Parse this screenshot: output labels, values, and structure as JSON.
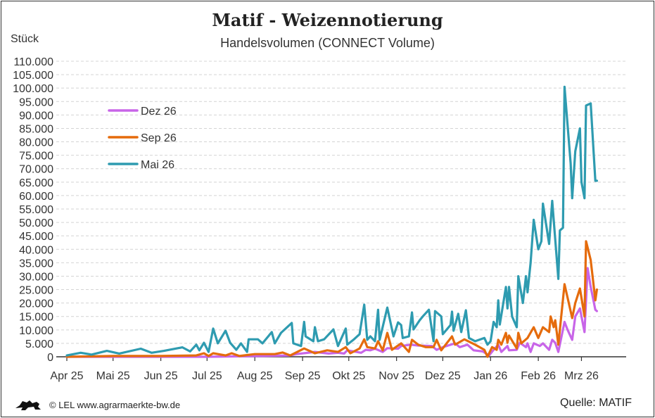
{
  "title": "Matif - Weizennotierung",
  "subtitle": "Handelsvolumen (CONNECT Volume)",
  "footer": {
    "copyright": "© LEL www.agrarmaerkte-bw.de",
    "source": "Quelle: MATIF",
    "logo_icon": "lion-icon"
  },
  "chart_data": {
    "type": "line",
    "title": "Matif - Weizennotierung",
    "subtitle": "Handelsvolumen (CONNECT Volume)",
    "ylabel": "Stück",
    "ylim": [
      0,
      110000
    ],
    "yticks": [
      "0",
      "5.000",
      "10.000",
      "15.000",
      "20.000",
      "25.000",
      "30.000",
      "35.000",
      "40.000",
      "45.000",
      "50.000",
      "55.000",
      "60.000",
      "65.000",
      "70.000",
      "75.000",
      "80.000",
      "85.000",
      "90.000",
      "95.000",
      "100.000",
      "105.000",
      "110.000"
    ],
    "xlim": [
      "2025-04-01",
      "2026-04-01"
    ],
    "xticks": [
      {
        "date": "2025-04-01",
        "label": "Apr 25"
      },
      {
        "date": "2025-05-01",
        "label": "Mai 25"
      },
      {
        "date": "2025-06-01",
        "label": "Jun 25"
      },
      {
        "date": "2025-07-01",
        "label": "Jul 25"
      },
      {
        "date": "2025-08-01",
        "label": "Aug 25"
      },
      {
        "date": "2025-09-01",
        "label": "Sep 25"
      },
      {
        "date": "2025-10-01",
        "label": "Okt 25"
      },
      {
        "date": "2025-11-01",
        "label": "Nov 25"
      },
      {
        "date": "2025-12-01",
        "label": "Dez 25"
      },
      {
        "date": "2026-01-01",
        "label": "Jan 26"
      },
      {
        "date": "2026-02-01",
        "label": "Feb 26"
      },
      {
        "date": "2026-03-01",
        "label": "Mrz 26"
      }
    ],
    "grid": true,
    "legend_position": "top-left",
    "series": [
      {
        "name": "Dez 26",
        "color": "#c865e8",
        "points": [
          [
            "2025-04-01",
            0
          ],
          [
            "2025-07-01",
            0
          ],
          [
            "2025-08-06",
            300
          ],
          [
            "2025-08-24",
            500
          ],
          [
            "2025-08-28",
            1000
          ],
          [
            "2025-09-09",
            1800
          ],
          [
            "2025-09-18",
            1200
          ],
          [
            "2025-09-24",
            1500
          ],
          [
            "2025-09-28",
            1200
          ],
          [
            "2025-09-30",
            2400
          ],
          [
            "2025-10-09",
            1500
          ],
          [
            "2025-10-12",
            2600
          ],
          [
            "2025-10-15",
            2400
          ],
          [
            "2025-10-18",
            3000
          ],
          [
            "2025-10-23",
            1800
          ],
          [
            "2025-10-26",
            3200
          ],
          [
            "2025-11-02",
            3000
          ],
          [
            "2025-11-04",
            4000
          ],
          [
            "2025-11-10",
            4500
          ],
          [
            "2025-11-15",
            4200
          ],
          [
            "2025-11-24",
            4000
          ],
          [
            "2025-11-27",
            2600
          ],
          [
            "2025-12-01",
            3600
          ],
          [
            "2025-12-09",
            5000
          ],
          [
            "2025-12-12",
            3600
          ],
          [
            "2025-12-17",
            4500
          ],
          [
            "2025-12-21",
            2400
          ],
          [
            "2025-12-27",
            2000
          ],
          [
            "2025-12-31",
            500
          ],
          [
            "2026-01-03",
            2600
          ],
          [
            "2026-01-06",
            4500
          ],
          [
            "2026-01-08",
            1800
          ],
          [
            "2026-01-12",
            4000
          ],
          [
            "2026-01-13",
            2400
          ],
          [
            "2026-01-18",
            2600
          ],
          [
            "2026-01-20",
            5200
          ],
          [
            "2026-01-24",
            3600
          ],
          [
            "2026-01-25",
            5000
          ],
          [
            "2026-01-27",
            1800
          ],
          [
            "2026-01-29",
            5000
          ],
          [
            "2026-02-02",
            4000
          ],
          [
            "2026-02-04",
            5000
          ],
          [
            "2026-02-08",
            2600
          ],
          [
            "2026-02-10",
            6300
          ],
          [
            "2026-02-12",
            5200
          ],
          [
            "2026-02-14",
            1800
          ],
          [
            "2026-02-18",
            13000
          ],
          [
            "2026-02-20",
            10000
          ],
          [
            "2026-02-23",
            6300
          ],
          [
            "2026-02-25",
            15000
          ],
          [
            "2026-02-28",
            18000
          ],
          [
            "2026-03-03",
            9200
          ],
          [
            "2026-03-05",
            33000
          ],
          [
            "2026-03-07",
            26000
          ],
          [
            "2026-03-10",
            17500
          ],
          [
            "2026-03-11",
            17000
          ]
        ]
      },
      {
        "name": "Sep 26",
        "color": "#e56b0c",
        "points": [
          [
            "2025-04-01",
            0
          ],
          [
            "2025-05-01",
            300
          ],
          [
            "2025-06-01",
            300
          ],
          [
            "2025-06-24",
            500
          ],
          [
            "2025-06-29",
            1300
          ],
          [
            "2025-07-02",
            300
          ],
          [
            "2025-07-05",
            1300
          ],
          [
            "2025-07-13",
            500
          ],
          [
            "2025-07-17",
            1300
          ],
          [
            "2025-07-22",
            300
          ],
          [
            "2025-08-01",
            1000
          ],
          [
            "2025-08-14",
            1000
          ],
          [
            "2025-08-19",
            1600
          ],
          [
            "2025-08-24",
            500
          ],
          [
            "2025-09-02",
            3100
          ],
          [
            "2025-09-09",
            1300
          ],
          [
            "2025-09-17",
            2400
          ],
          [
            "2025-09-24",
            1800
          ],
          [
            "2025-09-29",
            3600
          ],
          [
            "2025-10-02",
            1300
          ],
          [
            "2025-10-08",
            3100
          ],
          [
            "2025-10-11",
            6500
          ],
          [
            "2025-10-13",
            3600
          ],
          [
            "2025-10-18",
            3100
          ],
          [
            "2025-10-20",
            5800
          ],
          [
            "2025-10-23",
            2400
          ],
          [
            "2025-10-26",
            8900
          ],
          [
            "2025-10-29",
            2600
          ],
          [
            "2025-11-04",
            5000
          ],
          [
            "2025-11-09",
            1800
          ],
          [
            "2025-11-11",
            6300
          ],
          [
            "2025-11-15",
            4500
          ],
          [
            "2025-11-20",
            3600
          ],
          [
            "2025-11-25",
            3600
          ],
          [
            "2025-11-27",
            6300
          ],
          [
            "2025-11-30",
            2400
          ],
          [
            "2025-12-07",
            7600
          ],
          [
            "2025-12-09",
            4500
          ],
          [
            "2025-12-15",
            6500
          ],
          [
            "2025-12-22",
            4500
          ],
          [
            "2025-12-28",
            2600
          ],
          [
            "2025-12-30",
            0
          ],
          [
            "2026-01-02",
            3600
          ],
          [
            "2026-01-05",
            2600
          ],
          [
            "2026-01-06",
            6300
          ],
          [
            "2026-01-08",
            4500
          ],
          [
            "2026-01-11",
            8900
          ],
          [
            "2026-01-12",
            5200
          ],
          [
            "2026-01-13",
            7900
          ],
          [
            "2026-01-18",
            3100
          ],
          [
            "2026-01-19",
            8900
          ],
          [
            "2026-01-21",
            5000
          ],
          [
            "2026-01-25",
            7000
          ],
          [
            "2026-01-29",
            11000
          ],
          [
            "2026-02-01",
            7000
          ],
          [
            "2026-02-04",
            11000
          ],
          [
            "2026-02-08",
            9200
          ],
          [
            "2026-02-09",
            15000
          ],
          [
            "2026-02-11",
            11000
          ],
          [
            "2026-02-12",
            13600
          ],
          [
            "2026-02-14",
            4500
          ],
          [
            "2026-02-18",
            27000
          ],
          [
            "2026-02-23",
            14400
          ],
          [
            "2026-02-25",
            20000
          ],
          [
            "2026-02-28",
            25400
          ],
          [
            "2026-03-03",
            15000
          ],
          [
            "2026-03-04",
            43000
          ],
          [
            "2026-03-07",
            36000
          ],
          [
            "2026-03-10",
            21000
          ],
          [
            "2026-03-11",
            25000
          ]
        ]
      },
      {
        "name": "Mai 26",
        "color": "#2e9bb0",
        "points": [
          [
            "2025-04-01",
            500
          ],
          [
            "2025-04-10",
            1500
          ],
          [
            "2025-04-17",
            800
          ],
          [
            "2025-04-27",
            2200
          ],
          [
            "2025-05-05",
            1200
          ],
          [
            "2025-05-19",
            3000
          ],
          [
            "2025-05-26",
            1500
          ],
          [
            "2025-06-03",
            2200
          ],
          [
            "2025-06-15",
            3500
          ],
          [
            "2025-06-20",
            2000
          ],
          [
            "2025-06-24",
            4500
          ],
          [
            "2025-06-26",
            2400
          ],
          [
            "2025-06-29",
            5200
          ],
          [
            "2025-07-02",
            1800
          ],
          [
            "2025-07-05",
            10500
          ],
          [
            "2025-07-08",
            5000
          ],
          [
            "2025-07-13",
            9700
          ],
          [
            "2025-07-16",
            5200
          ],
          [
            "2025-07-20",
            2600
          ],
          [
            "2025-07-23",
            5000
          ],
          [
            "2025-07-27",
            1800
          ],
          [
            "2025-07-28",
            6500
          ],
          [
            "2025-08-03",
            6500
          ],
          [
            "2025-08-06",
            5000
          ],
          [
            "2025-08-12",
            9200
          ],
          [
            "2025-08-14",
            5000
          ],
          [
            "2025-08-18",
            8900
          ],
          [
            "2025-08-25",
            12600
          ],
          [
            "2025-08-26",
            5000
          ],
          [
            "2025-08-31",
            4000
          ],
          [
            "2025-09-02",
            13000
          ],
          [
            "2025-09-03",
            7600
          ],
          [
            "2025-09-08",
            5800
          ],
          [
            "2025-09-09",
            11000
          ],
          [
            "2025-09-11",
            5800
          ],
          [
            "2025-09-15",
            6500
          ],
          [
            "2025-09-21",
            10200
          ],
          [
            "2025-09-24",
            4000
          ],
          [
            "2025-09-29",
            10500
          ],
          [
            "2025-09-30",
            4500
          ],
          [
            "2025-10-04",
            6300
          ],
          [
            "2025-10-08",
            8400
          ],
          [
            "2025-10-11",
            19400
          ],
          [
            "2025-10-13",
            6300
          ],
          [
            "2025-10-15",
            7600
          ],
          [
            "2025-10-18",
            5800
          ],
          [
            "2025-10-20",
            17500
          ],
          [
            "2025-10-21",
            6300
          ],
          [
            "2025-10-26",
            18300
          ],
          [
            "2025-10-30",
            7600
          ],
          [
            "2025-11-02",
            12800
          ],
          [
            "2025-11-04",
            11800
          ],
          [
            "2025-11-05",
            7000
          ],
          [
            "2025-11-09",
            7600
          ],
          [
            "2025-11-11",
            16500
          ],
          [
            "2025-11-12",
            10200
          ],
          [
            "2025-11-16",
            13600
          ],
          [
            "2025-11-18",
            15000
          ],
          [
            "2025-11-22",
            17500
          ],
          [
            "2025-11-25",
            5800
          ],
          [
            "2025-11-26",
            17000
          ],
          [
            "2025-11-30",
            15000
          ],
          [
            "2025-12-01",
            8400
          ],
          [
            "2025-12-06",
            11800
          ],
          [
            "2025-12-07",
            16800
          ],
          [
            "2025-12-08",
            9700
          ],
          [
            "2025-12-11",
            16000
          ],
          [
            "2025-12-13",
            9200
          ],
          [
            "2025-12-16",
            17300
          ],
          [
            "2025-12-18",
            7000
          ],
          [
            "2025-12-22",
            5800
          ],
          [
            "2025-12-28",
            7000
          ],
          [
            "2025-12-30",
            4500
          ],
          [
            "2026-01-01",
            5800
          ],
          [
            "2026-01-03",
            13000
          ],
          [
            "2026-01-05",
            11000
          ],
          [
            "2026-01-06",
            21000
          ],
          [
            "2026-01-07",
            12000
          ],
          [
            "2026-01-11",
            26000
          ],
          [
            "2026-01-12",
            18000
          ],
          [
            "2026-01-13",
            26000
          ],
          [
            "2026-01-15",
            15000
          ],
          [
            "2026-01-18",
            11000
          ],
          [
            "2026-01-19",
            30000
          ],
          [
            "2026-01-22",
            20000
          ],
          [
            "2026-01-24",
            30000
          ],
          [
            "2026-01-25",
            24000
          ],
          [
            "2026-01-27",
            35000
          ],
          [
            "2026-01-29",
            51000
          ],
          [
            "2026-02-01",
            40000
          ],
          [
            "2026-02-03",
            43000
          ],
          [
            "2026-02-04",
            57000
          ],
          [
            "2026-02-08",
            42000
          ],
          [
            "2026-02-10",
            58000
          ],
          [
            "2026-02-14",
            29000
          ],
          [
            "2026-02-15",
            47000
          ],
          [
            "2026-02-17",
            48000
          ],
          [
            "2026-02-18",
            100500
          ],
          [
            "2026-02-22",
            72000
          ],
          [
            "2026-02-23",
            59000
          ],
          [
            "2026-02-25",
            76500
          ],
          [
            "2026-02-28",
            85000
          ],
          [
            "2026-03-01",
            65000
          ],
          [
            "2026-03-03",
            59000
          ],
          [
            "2026-03-04",
            93500
          ],
          [
            "2026-03-07",
            94300
          ],
          [
            "2026-03-10",
            65500
          ],
          [
            "2026-03-11",
            65500
          ]
        ]
      }
    ]
  }
}
